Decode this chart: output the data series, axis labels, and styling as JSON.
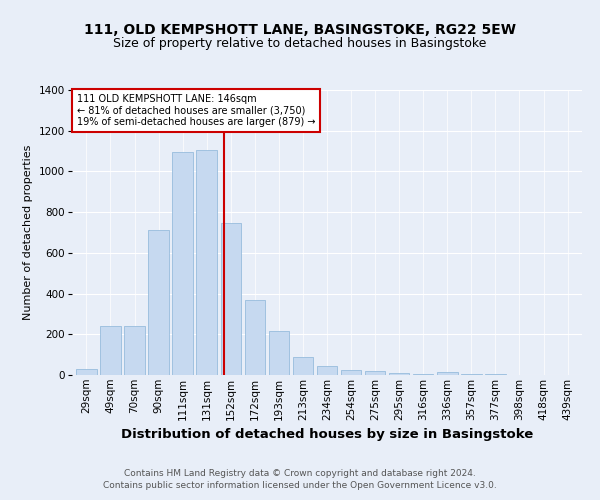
{
  "title": "111, OLD KEMPSHOTT LANE, BASINGSTOKE, RG22 5EW",
  "subtitle": "Size of property relative to detached houses in Basingstoke",
  "xlabel": "Distribution of detached houses by size in Basingstoke",
  "ylabel": "Number of detached properties",
  "categories": [
    "29sqm",
    "49sqm",
    "70sqm",
    "90sqm",
    "111sqm",
    "131sqm",
    "152sqm",
    "172sqm",
    "193sqm",
    "213sqm",
    "234sqm",
    "254sqm",
    "275sqm",
    "295sqm",
    "316sqm",
    "336sqm",
    "357sqm",
    "377sqm",
    "398sqm",
    "418sqm",
    "439sqm"
  ],
  "values": [
    30,
    240,
    240,
    710,
    1095,
    1105,
    745,
    370,
    215,
    90,
    45,
    25,
    20,
    10,
    5,
    15,
    5,
    5,
    2,
    2,
    2
  ],
  "bar_color": "#c6d9f0",
  "bar_edgecolor": "#8ab4d8",
  "bar_width": 0.85,
  "vline_x": 5.73,
  "vline_color": "#cc0000",
  "annotation_text": "111 OLD KEMPSHOTT LANE: 146sqm\n← 81% of detached houses are smaller (3,750)\n19% of semi-detached houses are larger (879) →",
  "annotation_box_color": "#ffffff",
  "annotation_box_edgecolor": "#cc0000",
  "ylim": [
    0,
    1400
  ],
  "yticks": [
    0,
    200,
    400,
    600,
    800,
    1000,
    1200,
    1400
  ],
  "footer": "Contains HM Land Registry data © Crown copyright and database right 2024.\nContains public sector information licensed under the Open Government Licence v3.0.",
  "bg_color": "#e8eef8",
  "plot_bg_color": "#e8eef8",
  "title_fontsize": 10,
  "subtitle_fontsize": 9,
  "xlabel_fontsize": 9.5,
  "ylabel_fontsize": 8,
  "tick_fontsize": 7.5,
  "footer_fontsize": 6.5
}
